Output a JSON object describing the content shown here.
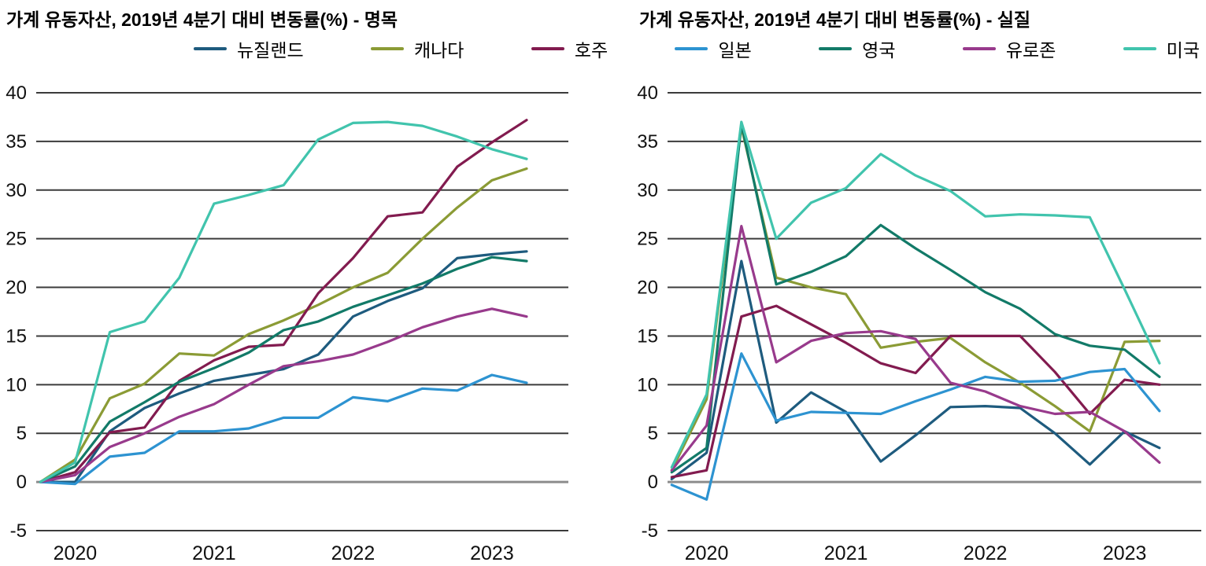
{
  "style": {
    "background": "#ffffff",
    "grid_color": "#3b3b3b",
    "zero_line_color": "#8c8c8c",
    "text_color": "#000000"
  },
  "legend": {
    "items": [
      {
        "key": "new-zealand",
        "label": "뉴질랜드",
        "color": "#1e5b7e"
      },
      {
        "key": "canada",
        "label": "캐나다",
        "color": "#8b9b35"
      },
      {
        "key": "australia",
        "label": "호주",
        "color": "#821b4f"
      },
      {
        "key": "japan",
        "label": "일본",
        "color": "#2d93d1"
      },
      {
        "key": "uk",
        "label": "영국",
        "color": "#127a68"
      },
      {
        "key": "eurozone",
        "label": "유로존",
        "color": "#983a8c"
      },
      {
        "key": "us",
        "label": "미국",
        "color": "#41c4ad"
      }
    ]
  },
  "chart_data": [
    {
      "type": "line",
      "title": "가계 유동자산, 2019년 4분기 대비 변동률(%) - 명목",
      "x_tick_labels": [
        "2020",
        "2021",
        "2022",
        "2023"
      ],
      "x_ticks": [
        2020,
        2021,
        2022,
        2023
      ],
      "x_range": [
        2019.72,
        2023.55
      ],
      "x_start": 2019.75,
      "x_step": 0.25,
      "ylim": [
        -5,
        40
      ],
      "y_ticks": [
        40,
        35,
        30,
        25,
        20,
        15,
        10,
        5,
        0,
        -5
      ],
      "grid": true,
      "legend_position": "top",
      "series": [
        {
          "name": "뉴질랜드",
          "values": [
            0,
            0,
            5.2,
            7.6,
            9.1,
            10.4,
            11.0,
            11.6,
            13.1,
            17.0,
            18.6,
            19.9,
            23.0,
            23.4,
            23.7
          ]
        },
        {
          "name": "캐나다",
          "values": [
            0,
            2.3,
            8.6,
            10.1,
            13.2,
            13.0,
            15.2,
            16.6,
            18.2,
            20.0,
            21.5,
            25.0,
            28.2,
            31.0,
            32.2
          ]
        },
        {
          "name": "호주",
          "values": [
            0,
            1.0,
            5.1,
            5.6,
            10.4,
            12.5,
            13.9,
            14.1,
            19.4,
            23.0,
            27.3,
            27.7,
            32.4,
            34.9,
            37.2
          ]
        },
        {
          "name": "일본",
          "values": [
            0,
            -0.2,
            2.6,
            3.0,
            5.2,
            5.2,
            5.5,
            6.6,
            6.6,
            8.7,
            8.3,
            9.6,
            9.4,
            11.0,
            10.2
          ]
        },
        {
          "name": "영국",
          "values": [
            0,
            1.6,
            6.2,
            8.2,
            10.3,
            11.7,
            13.3,
            15.6,
            16.5,
            18.0,
            19.2,
            20.4,
            21.9,
            23.1,
            22.7
          ]
        },
        {
          "name": "유로존",
          "values": [
            0,
            0.7,
            3.6,
            5.0,
            6.7,
            8.0,
            10.0,
            11.9,
            12.4,
            13.1,
            14.4,
            15.9,
            17.0,
            17.8,
            17.0
          ]
        },
        {
          "name": "미국",
          "values": [
            0,
            2.0,
            15.4,
            16.5,
            21.0,
            28.6,
            29.5,
            30.5,
            35.2,
            36.9,
            37.0,
            36.6,
            35.5,
            34.2,
            33.2
          ]
        }
      ]
    },
    {
      "type": "line",
      "title": "가계 유동자산, 2019년 4분기 대비 변동률(%) - 실질",
      "x_tick_labels": [
        "2020",
        "2021",
        "2022",
        "2023"
      ],
      "x_ticks": [
        2020,
        2021,
        2022,
        2023
      ],
      "x_range": [
        2019.72,
        2023.55
      ],
      "x_start": 2019.75,
      "x_step": 0.25,
      "ylim": [
        -5,
        40
      ],
      "y_ticks": [
        40,
        35,
        30,
        25,
        20,
        15,
        10,
        5,
        0,
        -5
      ],
      "grid": true,
      "legend_position": "top",
      "series": [
        {
          "name": "뉴질랜드",
          "values": [
            0.3,
            3.0,
            22.7,
            6.1,
            9.2,
            7.2,
            2.1,
            4.8,
            7.7,
            7.8,
            7.6,
            5.0,
            1.8,
            5.2,
            3.5
          ]
        },
        {
          "name": "캐나다",
          "values": [
            1.2,
            8.5,
            36.5,
            21.0,
            20.0,
            19.3,
            13.8,
            14.4,
            14.8,
            12.3,
            10.2,
            7.8,
            5.2,
            14.4,
            14.5
          ]
        },
        {
          "name": "호주",
          "values": [
            0.5,
            1.2,
            17.0,
            18.1,
            16.2,
            14.3,
            12.2,
            11.2,
            15.0,
            15.0,
            15.0,
            11.3,
            7.0,
            10.5,
            10.0
          ]
        },
        {
          "name": "일본",
          "values": [
            -0.3,
            -1.8,
            13.2,
            6.3,
            7.2,
            7.1,
            7.0,
            8.3,
            9.5,
            10.8,
            10.3,
            10.4,
            11.3,
            11.6,
            7.3
          ]
        },
        {
          "name": "영국",
          "values": [
            1.0,
            3.5,
            36.8,
            20.3,
            21.6,
            23.2,
            26.4,
            24.0,
            21.8,
            19.5,
            17.8,
            15.2,
            14.0,
            13.6,
            10.8
          ]
        },
        {
          "name": "유로존",
          "values": [
            1.2,
            5.8,
            26.3,
            12.3,
            14.5,
            15.3,
            15.5,
            14.7,
            10.2,
            9.3,
            7.8,
            7.0,
            7.2,
            5.2,
            2.0
          ]
        },
        {
          "name": "미국",
          "values": [
            1.5,
            9.0,
            37.0,
            25.0,
            28.7,
            30.2,
            33.7,
            31.5,
            29.9,
            27.3,
            27.5,
            27.4,
            27.2,
            19.8,
            12.2
          ]
        }
      ]
    }
  ]
}
